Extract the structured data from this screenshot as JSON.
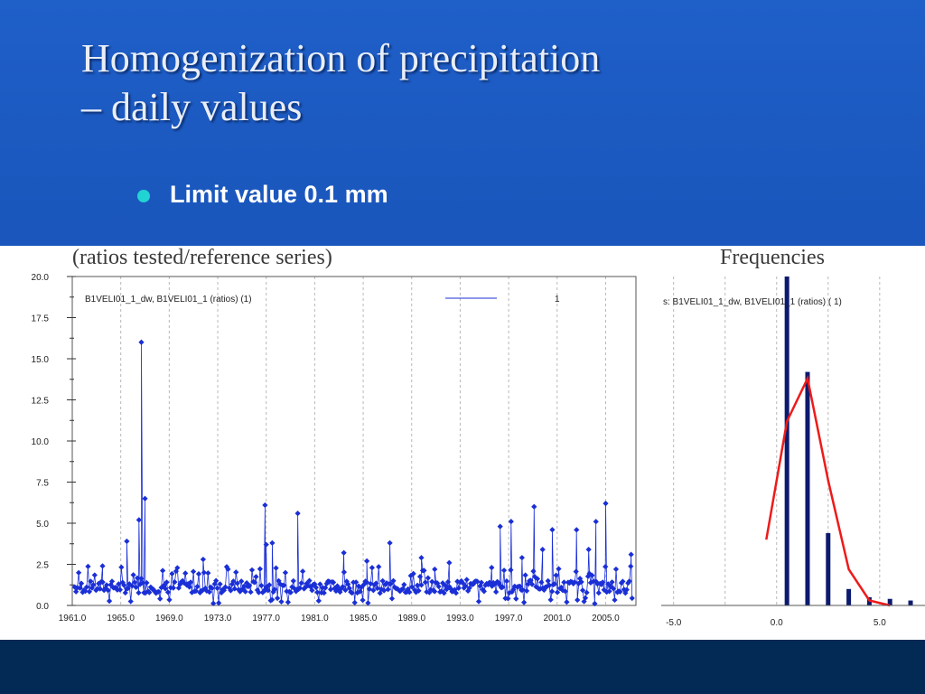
{
  "slide": {
    "title_line1": "Homogenization of precipitation",
    "title_line2": "– daily values",
    "bullet": "Limit value 0.1 mm",
    "caption_left": "(ratios tested/reference series)",
    "caption_right": "Frequencies"
  },
  "colors": {
    "series_blue": "#1a2fd6",
    "bar_navy": "#0c1a6e",
    "curve_red": "#ee1a1a",
    "grid": "#b8b8b8"
  },
  "chart_data": [
    {
      "type": "scatter",
      "legend_series": "B1VELI01_1_dw, B1VELI01_1 (ratios) (1)",
      "legend_value": "1",
      "xlim": [
        1961.0,
        2007.5
      ],
      "ylim": [
        0.0,
        20.0
      ],
      "x_ticks": [
        "1961.0",
        "1965.0",
        "1969.0",
        "1973.0",
        "1977.0",
        "1981.0",
        "1985.0",
        "1989.0",
        "1993.0",
        "1997.0",
        "2001.0",
        "2005.0"
      ],
      "y_ticks": [
        "0.0",
        "2.5",
        "5.0",
        "7.5",
        "10.0",
        "12.5",
        "15.0",
        "17.5",
        "20.0"
      ],
      "peaks": [
        {
          "x": 1966.7,
          "y": 16.0
        },
        {
          "x": 1966.5,
          "y": 5.2
        },
        {
          "x": 1967.0,
          "y": 6.5
        },
        {
          "x": 1965.5,
          "y": 3.9
        },
        {
          "x": 1976.9,
          "y": 6.1
        },
        {
          "x": 1979.6,
          "y": 5.6
        },
        {
          "x": 1977.0,
          "y": 3.7
        },
        {
          "x": 1977.5,
          "y": 3.8
        },
        {
          "x": 1987.2,
          "y": 3.8
        },
        {
          "x": 1985.3,
          "y": 2.7
        },
        {
          "x": 1989.8,
          "y": 2.9
        },
        {
          "x": 1992.1,
          "y": 2.6
        },
        {
          "x": 1996.3,
          "y": 4.8
        },
        {
          "x": 1997.2,
          "y": 5.1
        },
        {
          "x": 1999.1,
          "y": 6.0
        },
        {
          "x": 1999.8,
          "y": 3.4
        },
        {
          "x": 2000.6,
          "y": 4.6
        },
        {
          "x": 2002.6,
          "y": 4.6
        },
        {
          "x": 2004.2,
          "y": 5.1
        },
        {
          "x": 2005.0,
          "y": 6.2
        },
        {
          "x": 2003.6,
          "y": 3.4
        },
        {
          "x": 1998.1,
          "y": 2.9
        },
        {
          "x": 2007.1,
          "y": 3.1
        },
        {
          "x": 1963.5,
          "y": 2.4
        },
        {
          "x": 1971.8,
          "y": 2.8
        },
        {
          "x": 1995.6,
          "y": 2.3
        },
        {
          "x": 1983.4,
          "y": 3.2
        },
        {
          "x": 1990.9,
          "y": 2.2
        }
      ]
    },
    {
      "type": "bar",
      "legend_series": "s: B1VELI01_1_dw, B1VELI01_1 (ratios)  ( 1)",
      "xlim": [
        -5.6,
        7.2
      ],
      "ylim": [
        0,
        100
      ],
      "x_ticks": [
        "-5.0",
        "0.0",
        "5.0"
      ],
      "bars": [
        {
          "x": 0.5,
          "value": 100
        },
        {
          "x": 1.5,
          "value": 71
        },
        {
          "x": 2.5,
          "value": 22
        },
        {
          "x": 3.5,
          "value": 5
        },
        {
          "x": 4.5,
          "value": 2.5
        },
        {
          "x": 5.5,
          "value": 2
        },
        {
          "x": 6.5,
          "value": 1.5
        }
      ],
      "curve": [
        {
          "x": -0.5,
          "value": 20
        },
        {
          "x": 0.5,
          "value": 56
        },
        {
          "x": 1.5,
          "value": 69
        },
        {
          "x": 2.5,
          "value": 38
        },
        {
          "x": 3.5,
          "value": 11
        },
        {
          "x": 4.5,
          "value": 1.5
        },
        {
          "x": 5.5,
          "value": 0
        }
      ]
    }
  ]
}
